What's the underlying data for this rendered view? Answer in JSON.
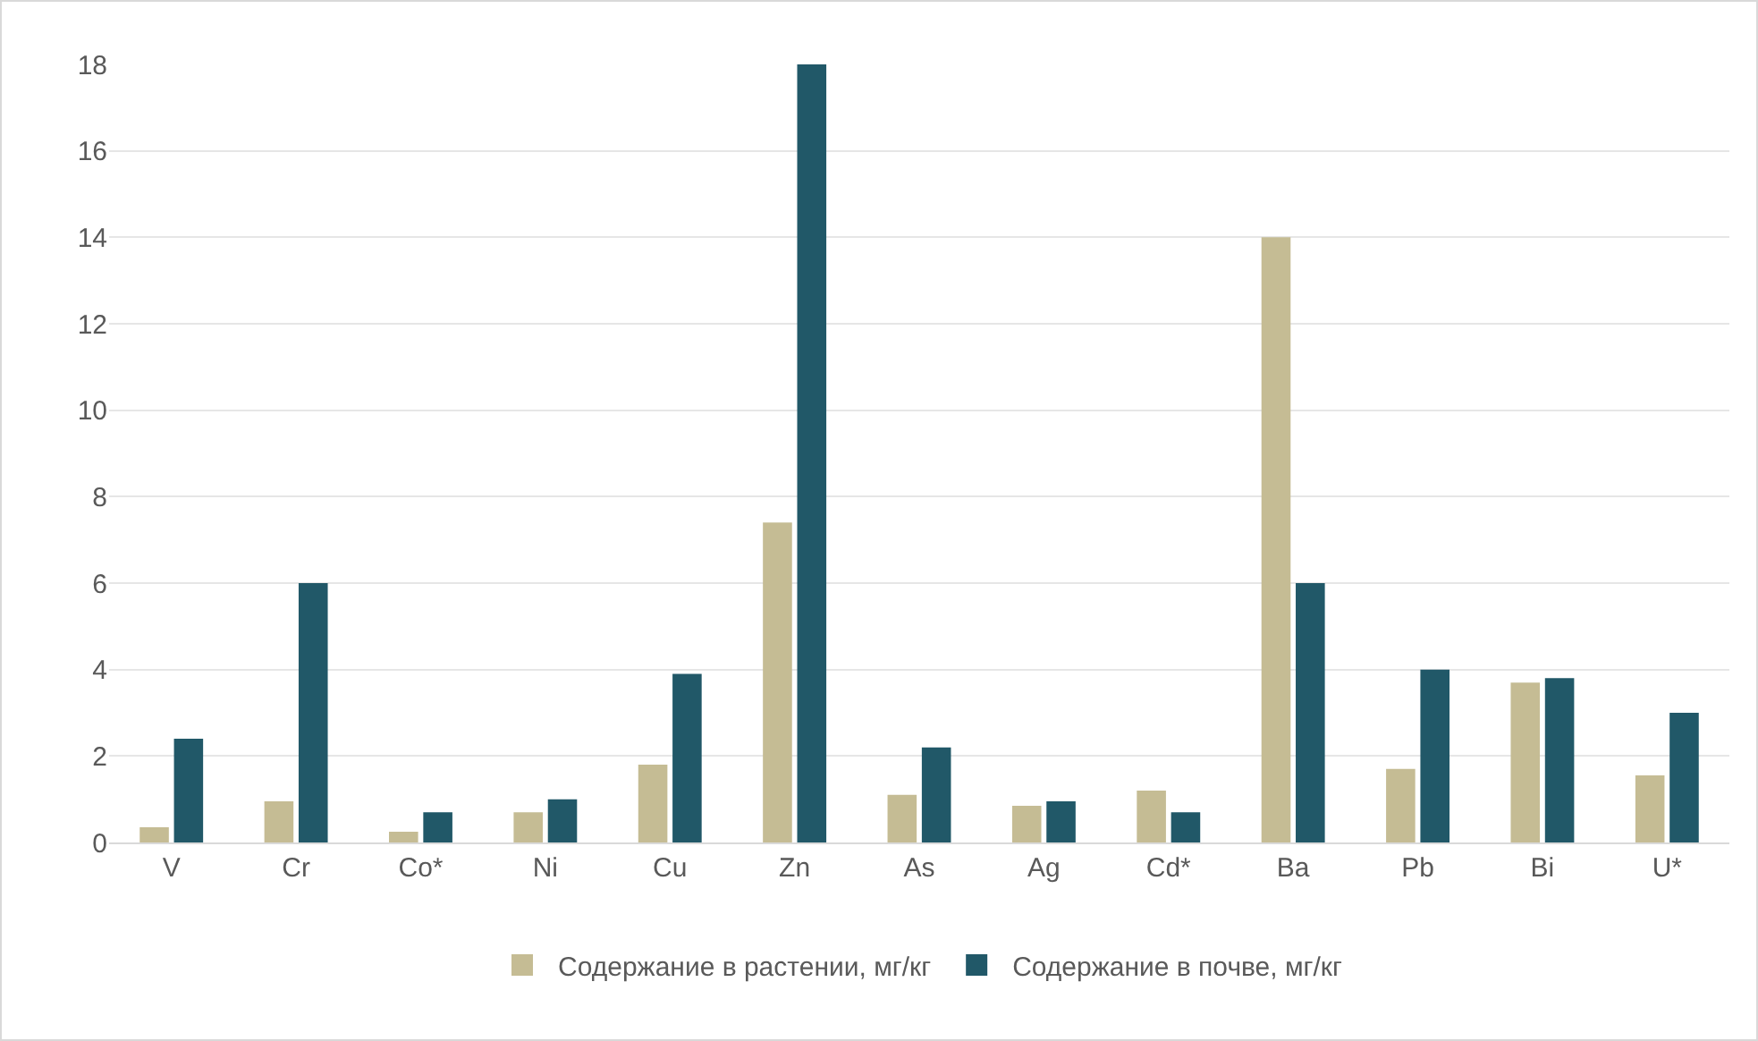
{
  "chart_data": {
    "type": "bar",
    "categories": [
      "V",
      "Cr",
      "Co*",
      "Ni",
      "Cu",
      "Zn",
      "As",
      "Ag",
      "Cd*",
      "Ba",
      "Pb",
      "Bi",
      "U*"
    ],
    "series": [
      {
        "name": "Содержание в растении, мг/кг",
        "color": "#c5bc94",
        "values": [
          0.35,
          0.95,
          0.25,
          0.7,
          1.8,
          7.4,
          1.1,
          0.85,
          1.2,
          14,
          1.7,
          3.7,
          1.55
        ]
      },
      {
        "name": "Содержание в почве, мг/кг",
        "color": "#215868",
        "values": [
          2.4,
          6,
          0.7,
          1,
          3.9,
          18,
          2.2,
          0.95,
          0.7,
          6,
          4,
          3.8,
          3
        ]
      }
    ],
    "ylim": [
      0,
      18
    ],
    "yticks": [
      0,
      2,
      4,
      6,
      8,
      10,
      12,
      14,
      16,
      18
    ],
    "grid": "y",
    "legend": "bottom"
  }
}
